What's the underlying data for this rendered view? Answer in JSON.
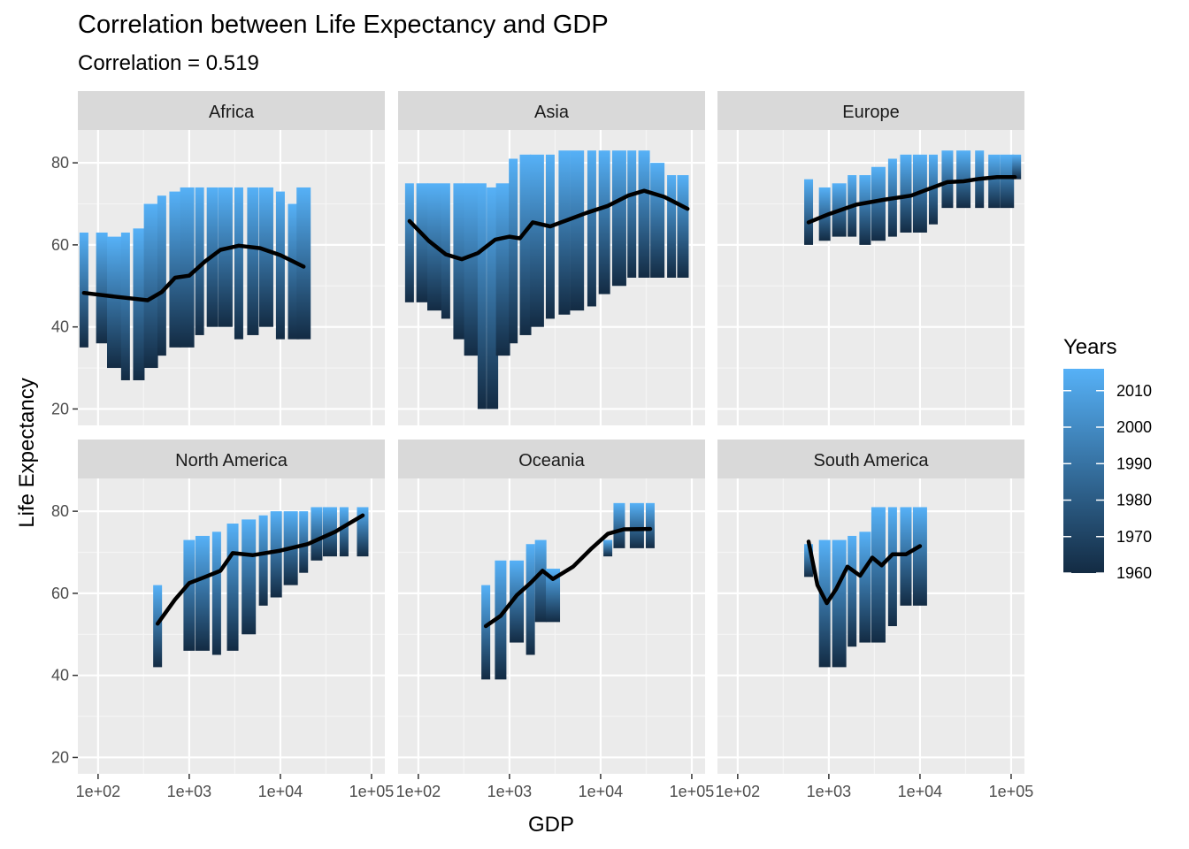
{
  "chart_data": {
    "type": "scatter",
    "title": "Correlation between Life Expectancy and GDP",
    "subtitle": "Correlation = 0.519",
    "xlabel": "GDP",
    "ylabel": "Life Expectancy",
    "x_scale": "log10",
    "xlim": [
      60,
      140000
    ],
    "ylim": [
      16,
      88
    ],
    "x_ticks": [
      100,
      1000,
      10000,
      100000
    ],
    "x_tick_labels": [
      "1e+02",
      "1e+03",
      "1e+04",
      "1e+05"
    ],
    "y_ticks": [
      20,
      40,
      60,
      80
    ],
    "y_tick_labels": [
      "20",
      "40",
      "60",
      "80"
    ],
    "grid": true,
    "legend": {
      "title": "Years",
      "placement": "right",
      "type": "colorbar",
      "range": [
        1960,
        2016
      ],
      "ticks": [
        1960,
        1970,
        1980,
        1990,
        2000,
        2010
      ],
      "color_low": "#132B43",
      "color_high": "#56B1F7"
    },
    "smooth_line_color": "#000000",
    "panels": [
      {
        "name": "Africa",
        "columns": [
          {
            "gdp": 70,
            "low": 35,
            "high": 63
          },
          {
            "gdp": 110,
            "low": 36,
            "high": 63
          },
          {
            "gdp": 150,
            "low": 30,
            "high": 62
          },
          {
            "gdp": 200,
            "low": 27,
            "high": 63
          },
          {
            "gdp": 280,
            "low": 27,
            "high": 64
          },
          {
            "gdp": 380,
            "low": 30,
            "high": 70
          },
          {
            "gdp": 500,
            "low": 33,
            "high": 72
          },
          {
            "gdp": 700,
            "low": 35,
            "high": 73
          },
          {
            "gdp": 950,
            "low": 35,
            "high": 74
          },
          {
            "gdp": 1300,
            "low": 38,
            "high": 74
          },
          {
            "gdp": 1800,
            "low": 40,
            "high": 74
          },
          {
            "gdp": 2500,
            "low": 40,
            "high": 74
          },
          {
            "gdp": 3500,
            "low": 37,
            "high": 74
          },
          {
            "gdp": 5000,
            "low": 38,
            "high": 74
          },
          {
            "gdp": 7000,
            "low": 40,
            "high": 74
          },
          {
            "gdp": 10000,
            "low": 37,
            "high": 73
          },
          {
            "gdp": 14000,
            "low": 37,
            "high": 70
          },
          {
            "gdp": 18000,
            "low": 37,
            "high": 74
          }
        ],
        "smooth": [
          {
            "gdp": 70,
            "life": 48.3
          },
          {
            "gdp": 150,
            "life": 47.4
          },
          {
            "gdp": 350,
            "life": 46.5
          },
          {
            "gdp": 500,
            "life": 48.5
          },
          {
            "gdp": 700,
            "life": 52
          },
          {
            "gdp": 1000,
            "life": 52.5
          },
          {
            "gdp": 1500,
            "life": 56
          },
          {
            "gdp": 2200,
            "life": 58.8
          },
          {
            "gdp": 3500,
            "life": 59.8
          },
          {
            "gdp": 6000,
            "life": 59.2
          },
          {
            "gdp": 10000,
            "life": 57.5
          },
          {
            "gdp": 18000,
            "life": 54.7
          }
        ]
      },
      {
        "name": "Asia",
        "columns": [
          {
            "gdp": 80,
            "low": 46,
            "high": 75
          },
          {
            "gdp": 110,
            "low": 46,
            "high": 75
          },
          {
            "gdp": 150,
            "low": 44,
            "high": 75
          },
          {
            "gdp": 200,
            "low": 42,
            "high": 75
          },
          {
            "gdp": 280,
            "low": 37,
            "high": 75
          },
          {
            "gdp": 380,
            "low": 33,
            "high": 75
          },
          {
            "gdp": 500,
            "low": 20,
            "high": 75
          },
          {
            "gdp": 650,
            "low": 20,
            "high": 74
          },
          {
            "gdp": 850,
            "low": 33,
            "high": 75
          },
          {
            "gdp": 1100,
            "low": 36,
            "high": 81
          },
          {
            "gdp": 1500,
            "low": 38,
            "high": 82
          },
          {
            "gdp": 2000,
            "low": 40,
            "high": 82
          },
          {
            "gdp": 2800,
            "low": 42,
            "high": 82
          },
          {
            "gdp": 4000,
            "low": 43,
            "high": 83
          },
          {
            "gdp": 5500,
            "low": 44,
            "high": 83
          },
          {
            "gdp": 8000,
            "low": 45,
            "high": 83
          },
          {
            "gdp": 11000,
            "low": 48,
            "high": 83
          },
          {
            "gdp": 16000,
            "low": 50,
            "high": 83
          },
          {
            "gdp": 22000,
            "low": 52,
            "high": 83
          },
          {
            "gdp": 30000,
            "low": 52,
            "high": 83
          },
          {
            "gdp": 42000,
            "low": 52,
            "high": 80
          },
          {
            "gdp": 60000,
            "low": 52,
            "high": 77
          },
          {
            "gdp": 80000,
            "low": 52,
            "high": 77
          }
        ],
        "smooth": [
          {
            "gdp": 80,
            "life": 65.8
          },
          {
            "gdp": 130,
            "life": 61
          },
          {
            "gdp": 200,
            "life": 57.7
          },
          {
            "gdp": 300,
            "life": 56.5
          },
          {
            "gdp": 450,
            "life": 58
          },
          {
            "gdp": 700,
            "life": 61.3
          },
          {
            "gdp": 1000,
            "life": 62
          },
          {
            "gdp": 1300,
            "life": 61.6
          },
          {
            "gdp": 1800,
            "life": 65.5
          },
          {
            "gdp": 2800,
            "life": 64.5
          },
          {
            "gdp": 4500,
            "life": 66.2
          },
          {
            "gdp": 7000,
            "life": 67.8
          },
          {
            "gdp": 12000,
            "life": 69.5
          },
          {
            "gdp": 20000,
            "life": 72
          },
          {
            "gdp": 30000,
            "life": 73.2
          },
          {
            "gdp": 50000,
            "life": 71.7
          },
          {
            "gdp": 90000,
            "life": 68.8
          }
        ]
      },
      {
        "name": "Europe",
        "columns": [
          {
            "gdp": 600,
            "low": 60,
            "high": 76
          },
          {
            "gdp": 900,
            "low": 61,
            "high": 74
          },
          {
            "gdp": 1300,
            "low": 62,
            "high": 75
          },
          {
            "gdp": 1800,
            "low": 62,
            "high": 77
          },
          {
            "gdp": 2500,
            "low": 60,
            "high": 77
          },
          {
            "gdp": 3500,
            "low": 61,
            "high": 79
          },
          {
            "gdp": 5000,
            "low": 62,
            "high": 81
          },
          {
            "gdp": 7000,
            "low": 63,
            "high": 82
          },
          {
            "gdp": 10000,
            "low": 63,
            "high": 82
          },
          {
            "gdp": 14000,
            "low": 65,
            "high": 82
          },
          {
            "gdp": 20000,
            "low": 69,
            "high": 83
          },
          {
            "gdp": 30000,
            "low": 69,
            "high": 83
          },
          {
            "gdp": 45000,
            "low": 69,
            "high": 83
          },
          {
            "gdp": 65000,
            "low": 69,
            "high": 82
          },
          {
            "gdp": 90000,
            "low": 69,
            "high": 82
          },
          {
            "gdp": 115000,
            "low": 76,
            "high": 82
          }
        ],
        "smooth": [
          {
            "gdp": 600,
            "life": 65.5
          },
          {
            "gdp": 1000,
            "life": 67.5
          },
          {
            "gdp": 2000,
            "life": 69.8
          },
          {
            "gdp": 4000,
            "life": 71
          },
          {
            "gdp": 8000,
            "life": 72
          },
          {
            "gdp": 12000,
            "life": 73.5
          },
          {
            "gdp": 20000,
            "life": 75.3
          },
          {
            "gdp": 30000,
            "life": 75.5
          },
          {
            "gdp": 45000,
            "life": 76.1
          },
          {
            "gdp": 70000,
            "life": 76.5
          },
          {
            "gdp": 110000,
            "life": 76.5
          }
        ]
      },
      {
        "name": "North America",
        "columns": [
          {
            "gdp": 450,
            "low": 42,
            "high": 62
          },
          {
            "gdp": 1000,
            "low": 46,
            "high": 73
          },
          {
            "gdp": 1400,
            "low": 46,
            "high": 74
          },
          {
            "gdp": 2000,
            "low": 45,
            "high": 75
          },
          {
            "gdp": 3000,
            "low": 46,
            "high": 77
          },
          {
            "gdp": 4500,
            "low": 50,
            "high": 78
          },
          {
            "gdp": 6500,
            "low": 57,
            "high": 79
          },
          {
            "gdp": 9000,
            "low": 59,
            "high": 80
          },
          {
            "gdp": 13000,
            "low": 62,
            "high": 80
          },
          {
            "gdp": 18000,
            "low": 65,
            "high": 80
          },
          {
            "gdp": 25000,
            "low": 68,
            "high": 81
          },
          {
            "gdp": 35000,
            "low": 69,
            "high": 81
          },
          {
            "gdp": 50000,
            "low": 69,
            "high": 81
          },
          {
            "gdp": 80000,
            "low": 69,
            "high": 81
          }
        ],
        "smooth": [
          {
            "gdp": 450,
            "life": 52.6
          },
          {
            "gdp": 700,
            "life": 58.5
          },
          {
            "gdp": 1000,
            "life": 62.5
          },
          {
            "gdp": 1500,
            "life": 64
          },
          {
            "gdp": 2200,
            "life": 65.5
          },
          {
            "gdp": 3000,
            "life": 69.8
          },
          {
            "gdp": 5000,
            "life": 69.3
          },
          {
            "gdp": 10000,
            "life": 70.4
          },
          {
            "gdp": 20000,
            "life": 72
          },
          {
            "gdp": 40000,
            "life": 75
          },
          {
            "gdp": 80000,
            "life": 79
          }
        ]
      },
      {
        "name": "Oceania",
        "columns": [
          {
            "gdp": 550,
            "low": 39,
            "high": 62
          },
          {
            "gdp": 800,
            "low": 39,
            "high": 68
          },
          {
            "gdp": 1200,
            "low": 48,
            "high": 68
          },
          {
            "gdp": 1700,
            "low": 45,
            "high": 72
          },
          {
            "gdp": 2200,
            "low": 53,
            "high": 73
          },
          {
            "gdp": 3000,
            "low": 53,
            "high": 66
          },
          {
            "gdp": 12000,
            "low": 69,
            "high": 73
          },
          {
            "gdp": 16000,
            "low": 71,
            "high": 82
          },
          {
            "gdp": 25000,
            "low": 71,
            "high": 82
          },
          {
            "gdp": 35000,
            "low": 71,
            "high": 82
          }
        ],
        "smooth": [
          {
            "gdp": 550,
            "life": 52
          },
          {
            "gdp": 800,
            "life": 54.5
          },
          {
            "gdp": 1200,
            "life": 59.5
          },
          {
            "gdp": 1700,
            "life": 62.5
          },
          {
            "gdp": 2300,
            "life": 65.5
          },
          {
            "gdp": 3000,
            "life": 63.5
          },
          {
            "gdp": 5000,
            "life": 66.5
          },
          {
            "gdp": 8000,
            "life": 71
          },
          {
            "gdp": 12000,
            "life": 74.5
          },
          {
            "gdp": 18000,
            "life": 75.6
          },
          {
            "gdp": 35000,
            "life": 75.7
          }
        ]
      },
      {
        "name": "South America",
        "columns": [
          {
            "gdp": 600,
            "low": 64,
            "high": 72
          },
          {
            "gdp": 900,
            "low": 42,
            "high": 73
          },
          {
            "gdp": 1300,
            "low": 42,
            "high": 73
          },
          {
            "gdp": 1800,
            "low": 47,
            "high": 74
          },
          {
            "gdp": 2500,
            "low": 48,
            "high": 75
          },
          {
            "gdp": 3500,
            "low": 48,
            "high": 81
          },
          {
            "gdp": 5000,
            "low": 52,
            "high": 81
          },
          {
            "gdp": 7000,
            "low": 57,
            "high": 81
          },
          {
            "gdp": 10000,
            "low": 57,
            "high": 81
          }
        ],
        "smooth": [
          {
            "gdp": 600,
            "life": 72.6
          },
          {
            "gdp": 750,
            "life": 62
          },
          {
            "gdp": 950,
            "life": 57.6
          },
          {
            "gdp": 1200,
            "life": 61
          },
          {
            "gdp": 1600,
            "life": 66.5
          },
          {
            "gdp": 2200,
            "life": 64.3
          },
          {
            "gdp": 3000,
            "life": 68.7
          },
          {
            "gdp": 3800,
            "life": 66.8
          },
          {
            "gdp": 5000,
            "life": 69.5
          },
          {
            "gdp": 7000,
            "life": 69.5
          },
          {
            "gdp": 10000,
            "life": 71.5
          }
        ]
      }
    ]
  }
}
